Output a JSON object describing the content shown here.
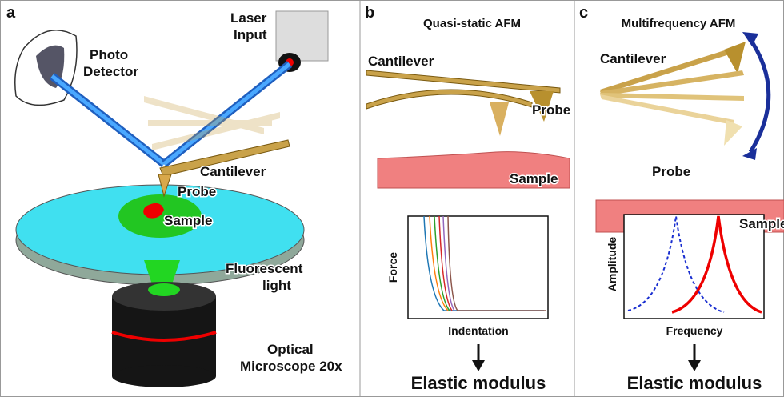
{
  "panel_a": {
    "letter": "a",
    "photo_detector": [
      "Photo",
      "Detector"
    ],
    "laser_input": [
      "Laser",
      "Input"
    ],
    "cantilever": "Cantilever",
    "probe": "Probe",
    "sample": "Sample",
    "fluorescent_light": [
      "Fluorescent",
      "light"
    ],
    "microscope": [
      "Optical",
      "Microscope 20x"
    ]
  },
  "panel_b": {
    "letter": "b",
    "title": "Quasi-static AFM",
    "cantilever": "Cantilever",
    "probe": "Probe",
    "sample": "Sample",
    "y_label": "Force",
    "x_label": "Indentation",
    "result": "Elastic modulus"
  },
  "panel_c": {
    "letter": "c",
    "title": "Multifrequency AFM",
    "cantilever": "Cantilever",
    "probe": "Probe",
    "sample": "Sample",
    "y_label": "Amplitude",
    "x_label": "Frequency",
    "result": "Elastic modulus"
  }
}
